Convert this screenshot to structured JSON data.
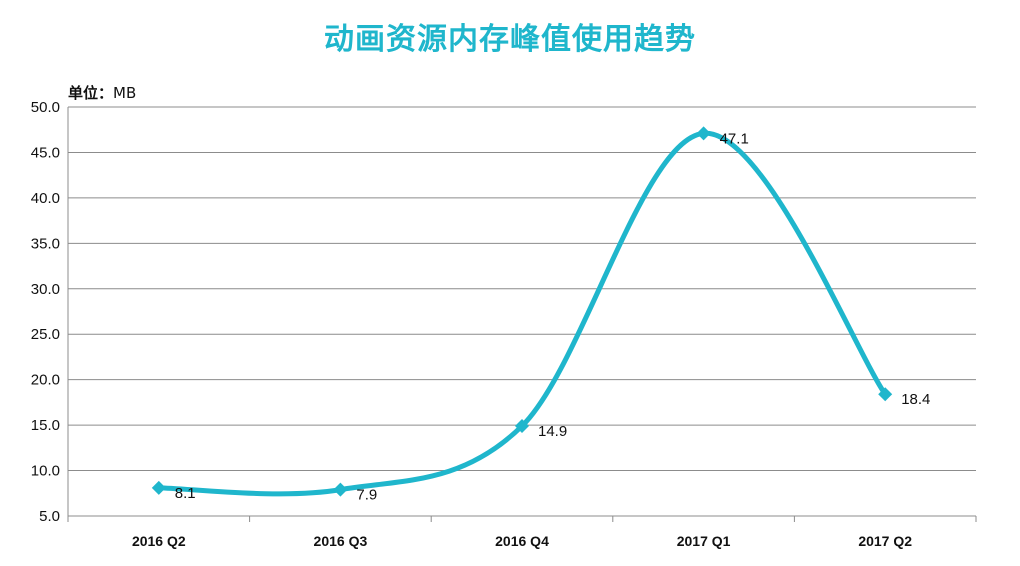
{
  "chart_data": {
    "type": "line",
    "title": "动画资源内存峰值使用趋势",
    "unit_label": "单位：",
    "unit_value": "MB",
    "categories": [
      "2016 Q2",
      "2016 Q3",
      "2016 Q4",
      "2017 Q1",
      "2017 Q2"
    ],
    "values": [
      8.1,
      7.9,
      14.9,
      47.1,
      18.4
    ],
    "data_labels": [
      "8.1",
      "7.9",
      "14.9",
      "47.1",
      "18.4"
    ],
    "ylim": [
      5.0,
      50.0
    ],
    "yticks": [
      "5.0",
      "10.0",
      "15.0",
      "20.0",
      "25.0",
      "30.0",
      "35.0",
      "40.0",
      "45.0",
      "50.0"
    ],
    "grid": true,
    "smooth": true,
    "line_color": "#1fb6cc",
    "grid_color": "#8c8c8c"
  }
}
